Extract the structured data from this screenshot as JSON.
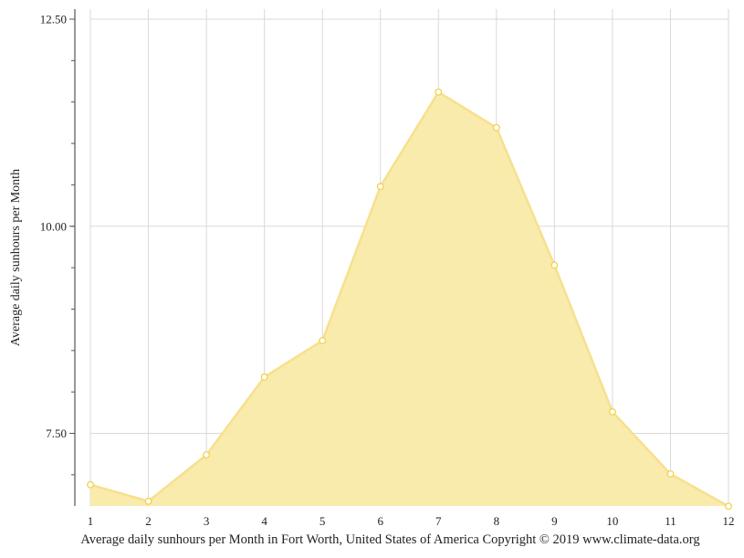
{
  "chart_data": {
    "type": "area",
    "title": "Average daily sunhours per Month in Fort Worth, United States of America Copyright © 2019 www.climate-data.org",
    "xlabel": "",
    "ylabel": "Average daily sunhours per Month",
    "categories": [
      "1",
      "2",
      "3",
      "4",
      "5",
      "6",
      "7",
      "8",
      "9",
      "10",
      "11",
      "12"
    ],
    "series": [
      {
        "name": "Average daily sunhours",
        "values": [
          6.88,
          6.68,
          7.24,
          8.18,
          8.62,
          10.48,
          11.62,
          11.19,
          9.53,
          7.76,
          7.01,
          6.62
        ]
      }
    ],
    "yticks": [
      "7.50",
      "10.00",
      "12.50"
    ],
    "ytick_values": [
      7.5,
      10.0,
      12.5
    ],
    "ylim": [
      6.62,
      12.62
    ],
    "grid": true,
    "legend": "none",
    "colors": {
      "fill": "#f9eaa6",
      "line": "#f7e08e",
      "marker_stroke": "#f3d24e",
      "grid": "#d9d9d9",
      "axis": "#555555"
    }
  },
  "labels": {
    "ylabel": "Average daily sunhours per Month",
    "caption": "Average daily sunhours per Month in Fort Worth, United States of America Copyright © 2019 www.climate-data.org"
  }
}
